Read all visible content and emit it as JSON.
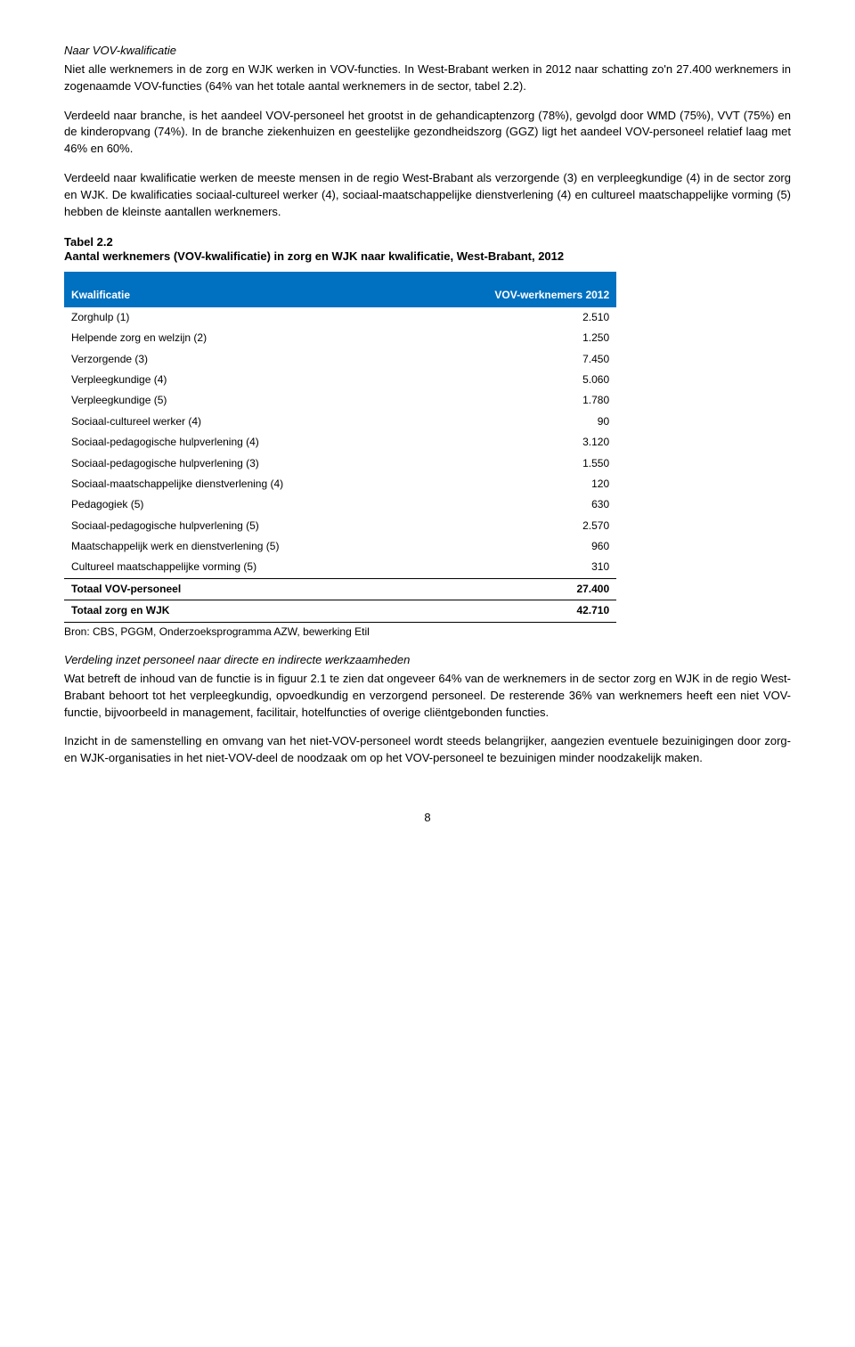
{
  "h1": "Naar VOV-kwalificatie",
  "p1": "Niet alle werknemers in de zorg en WJK werken in VOV-functies. In West-Brabant werken in 2012 naar schatting zo'n 27.400 werknemers in zogenaamde VOV-functies (64% van het totale aantal werknemers in de sector, tabel 2.2).",
  "p2": "Verdeeld naar branche, is het aandeel VOV-personeel het grootst in de gehandicaptenzorg (78%), gevolgd door WMD (75%), VVT (75%) en de kinderopvang (74%). In de branche ziekenhuizen en geestelijke gezondheidszorg (GGZ) ligt het aandeel VOV-personeel relatief laag met 46% en 60%.",
  "p3": "Verdeeld naar kwalificatie werken de meeste mensen in de regio West-Brabant als verzorgende (3) en verpleegkundige (4) in de sector zorg en WJK. De kwalificaties sociaal-cultureel werker (4), sociaal-maatschappelijke dienstverlening (4) en cultureel maatschappelijke vorming (5) hebben de kleinste aantallen werknemers.",
  "table_caption_l1": "Tabel 2.2",
  "table_caption_l2": "Aantal werknemers (VOV-kwalificatie) in zorg en WJK naar kwalificatie, West-Brabant, 2012",
  "table": {
    "col1": "Kwalificatie",
    "col2": "VOV-werknemers 2012",
    "rows": [
      {
        "label": "Zorghulp (1)",
        "value": "2.510"
      },
      {
        "label": "Helpende zorg en welzijn (2)",
        "value": "1.250"
      },
      {
        "label": "Verzorgende (3)",
        "value": "7.450"
      },
      {
        "label": "Verpleegkundige (4)",
        "value": "5.060"
      },
      {
        "label": "Verpleegkundige (5)",
        "value": "1.780"
      },
      {
        "label": "Sociaal-cultureel werker (4)",
        "value": "90"
      },
      {
        "label": "Sociaal-pedagogische hulpverlening (4)",
        "value": "3.120"
      },
      {
        "label": "Sociaal-pedagogische hulpverlening (3)",
        "value": "1.550"
      },
      {
        "label": "Sociaal-maatschappelijke dienstverlening (4)",
        "value": "120"
      },
      {
        "label": "Pedagogiek (5)",
        "value": "630"
      },
      {
        "label": "Sociaal-pedagogische hulpverlening (5)",
        "value": "2.570"
      },
      {
        "label": "Maatschappelijk werk en dienstverlening (5)",
        "value": "960"
      },
      {
        "label": "Cultureel maatschappelijke vorming (5)",
        "value": "310"
      }
    ],
    "totals": [
      {
        "label": "Totaal VOV-personeel",
        "value": "27.400"
      },
      {
        "label": "Totaal zorg en WJK",
        "value": "42.710"
      }
    ]
  },
  "source": "Bron: CBS, PGGM, Onderzoeksprogramma AZW, bewerking Etil",
  "h2": "Verdeling inzet personeel naar directe en indirecte werkzaamheden",
  "p4": "Wat betreft de inhoud van de functie is in figuur 2.1 te zien dat ongeveer 64% van de werknemers in de sector zorg en WJK in de regio West-Brabant behoort tot het verpleegkundig, opvoedkundig en verzorgend personeel. De resterende 36% van werk­nemers heeft een niet VOV-functie, bijvoorbeeld in management, facilitair, hotelfuncties of overige cliëntgebonden functies.",
  "p5": "Inzicht in de samenstelling en omvang van het niet-VOV-personeel wordt steeds belangrijker, aangezien eventuele bezuinigingen door zorg- en WJK-organisaties in het niet-VOV-deel de noodzaak om op het VOV-personeel te bezuinigen minder noodzakelijk maken.",
  "page": "8"
}
